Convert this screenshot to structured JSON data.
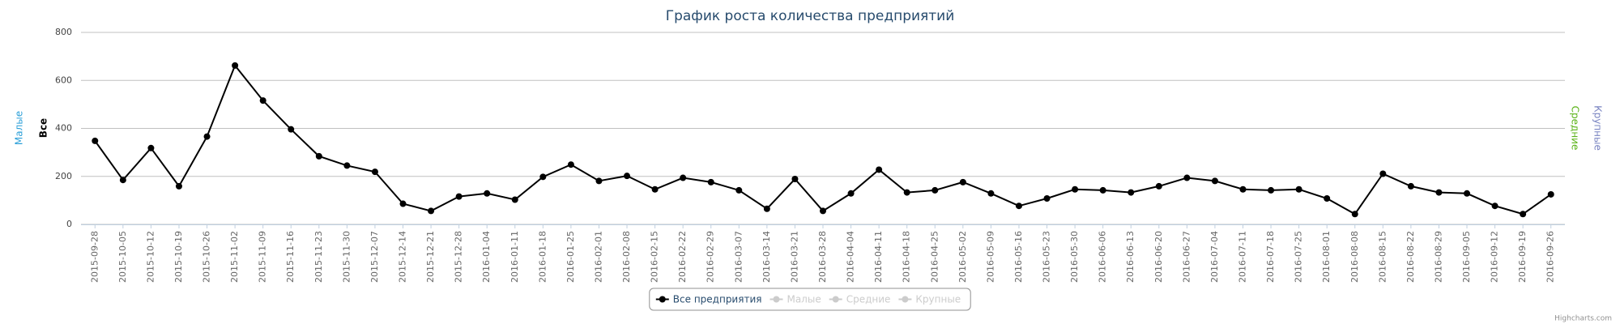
{
  "chart_data": {
    "type": "line",
    "title": "График роста количества предприятий",
    "categories": [
      "2015-09-28",
      "2015-10-05",
      "2015-10-12",
      "2015-10-19",
      "2015-10-26",
      "2015-11-02",
      "2015-11-09",
      "2015-11-16",
      "2015-11-23",
      "2015-11-30",
      "2015-12-07",
      "2015-12-14",
      "2015-12-21",
      "2015-12-28",
      "2016-01-04",
      "2016-01-11",
      "2016-01-18",
      "2016-01-25",
      "2016-02-01",
      "2016-02-08",
      "2016-02-15",
      "2016-02-22",
      "2016-02-29",
      "2016-03-07",
      "2016-03-14",
      "2016-03-21",
      "2016-03-28",
      "2016-04-04",
      "2016-04-11",
      "2016-04-18",
      "2016-04-25",
      "2016-05-02",
      "2016-05-09",
      "2016-05-16",
      "2016-05-23",
      "2016-05-30",
      "2016-06-06",
      "2016-06-13",
      "2016-06-20",
      "2016-06-27",
      "2016-07-04",
      "2016-07-11",
      "2016-07-18",
      "2016-07-25",
      "2016-08-01",
      "2016-08-08",
      "2016-08-15",
      "2016-08-22",
      "2016-08-29",
      "2016-09-05",
      "2016-09-12",
      "2016-09-19",
      "2016-09-26"
    ],
    "series": [
      {
        "name": "Все предприятия",
        "color": "#000000",
        "visible": true,
        "values": [
          348,
          185,
          318,
          159,
          366,
          662,
          516,
          396,
          284,
          245,
          219,
          86,
          56,
          116,
          129,
          103,
          198,
          249,
          181,
          202,
          146,
          194,
          176,
          142,
          65,
          189,
          56,
          129,
          228,
          133,
          142,
          176,
          129,
          77,
          108,
          146,
          142,
          133,
          159,
          194,
          181,
          146,
          142,
          146,
          108,
          43,
          211,
          159,
          133,
          129,
          77,
          43,
          125
        ]
      },
      {
        "name": "Малые",
        "color": "#2b9fd8",
        "visible": false
      },
      {
        "name": "Средние",
        "color": "#5bb318",
        "visible": false
      },
      {
        "name": "Крупные",
        "color": "#7a85c2",
        "visible": false
      }
    ],
    "y_axes": [
      {
        "title": "Малые",
        "color": "#2b9fd8",
        "side": "left"
      },
      {
        "title": "Все",
        "color": "#000000",
        "side": "left"
      },
      {
        "title": "Средние",
        "color": "#5bb318",
        "side": "right"
      },
      {
        "title": "Крупные",
        "color": "#7a85c2",
        "side": "right"
      }
    ],
    "ylim": [
      0,
      800
    ],
    "yticks": [
      0,
      200,
      400,
      600,
      800
    ],
    "grid": true,
    "legend": "bottom",
    "credits": "Highcharts.com"
  }
}
